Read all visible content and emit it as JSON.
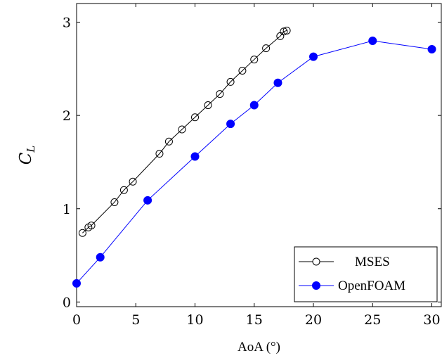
{
  "chart_data": {
    "type": "line",
    "xlabel": "AoA (°)",
    "ylabel": "C",
    "ylabel_subscript": "L",
    "xlim": [
      0,
      30.8
    ],
    "ylim": [
      -0.05,
      3.2
    ],
    "x_ticks": [
      0,
      5,
      10,
      15,
      20,
      25,
      30
    ],
    "y_ticks": [
      0,
      1,
      2,
      3
    ],
    "grid": false,
    "legend_position": "bottom-right",
    "series": [
      {
        "name": "MSES",
        "color": "#000000",
        "marker": "open-circle",
        "x": [
          0.5,
          1.0,
          1.25,
          3.2,
          4.0,
          4.75,
          7.0,
          7.8,
          8.9,
          10.0,
          11.1,
          12.1,
          13.0,
          14.0,
          15.0,
          16.0,
          17.2,
          17.5,
          17.75
        ],
        "y": [
          0.74,
          0.8,
          0.82,
          1.07,
          1.2,
          1.29,
          1.59,
          1.72,
          1.85,
          1.98,
          2.11,
          2.23,
          2.36,
          2.48,
          2.6,
          2.72,
          2.85,
          2.9,
          2.91
        ]
      },
      {
        "name": "OpenFOAM",
        "color": "#0000ff",
        "marker": "filled-circle",
        "x": [
          0,
          2,
          6,
          10,
          13,
          15,
          17,
          20,
          25,
          30
        ],
        "y": [
          0.2,
          0.48,
          1.09,
          1.56,
          1.91,
          2.11,
          2.35,
          2.63,
          2.8,
          2.71
        ]
      }
    ]
  }
}
